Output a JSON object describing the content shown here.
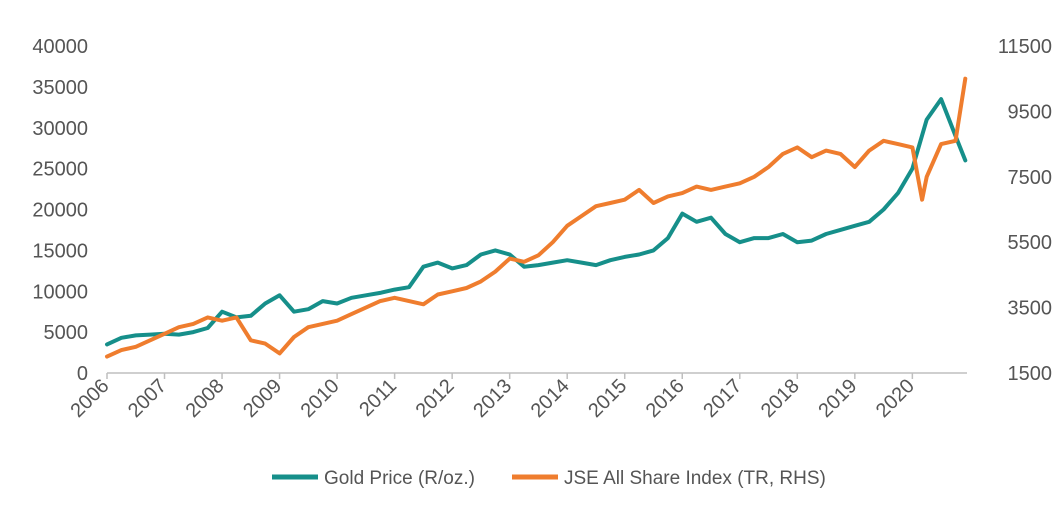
{
  "chart_data": {
    "type": "line",
    "title": "",
    "xlabel": "",
    "ylabel": "",
    "y2label": "",
    "x_ticks": [
      "2006",
      "2007",
      "2008",
      "2009",
      "2010",
      "2011",
      "2012",
      "2013",
      "2014",
      "2015",
      "2016",
      "2017",
      "2018",
      "2019",
      "2020"
    ],
    "xlim": [
      2006,
      2020.95
    ],
    "y_left_ticks": [
      "0",
      "5000",
      "10000",
      "15000",
      "20000",
      "25000",
      "30000",
      "35000",
      "40000"
    ],
    "y_right_ticks": [
      "1500",
      "3500",
      "5500",
      "7500",
      "9500",
      "11500"
    ],
    "ylim_left": [
      0,
      40000
    ],
    "ylim_right": [
      1500,
      11500
    ],
    "grid": false,
    "legend_position": "bottom",
    "series": [
      {
        "name": "Gold Price (R/oz.)",
        "axis": "left",
        "color": "#168f8a",
        "x": [
          2006.0,
          2006.25,
          2006.5,
          2006.75,
          2007.0,
          2007.25,
          2007.5,
          2007.75,
          2008.0,
          2008.25,
          2008.5,
          2008.75,
          2009.0,
          2009.25,
          2009.5,
          2009.75,
          2010.0,
          2010.25,
          2010.5,
          2010.75,
          2011.0,
          2011.25,
          2011.5,
          2011.75,
          2012.0,
          2012.25,
          2012.5,
          2012.75,
          2013.0,
          2013.25,
          2013.5,
          2013.75,
          2014.0,
          2014.25,
          2014.5,
          2014.75,
          2015.0,
          2015.25,
          2015.5,
          2015.75,
          2016.0,
          2016.25,
          2016.5,
          2016.75,
          2017.0,
          2017.25,
          2017.5,
          2017.75,
          2018.0,
          2018.25,
          2018.5,
          2018.75,
          2019.0,
          2019.25,
          2019.5,
          2019.75,
          2020.0,
          2020.25,
          2020.5,
          2020.75,
          2020.92
        ],
        "values": [
          3500,
          4300,
          4600,
          4700,
          4800,
          4700,
          5000,
          5500,
          7500,
          6800,
          7000,
          8500,
          9500,
          7500,
          7800,
          8800,
          8500,
          9200,
          9500,
          9800,
          10200,
          10500,
          13000,
          13500,
          12800,
          13200,
          14500,
          15000,
          14500,
          13000,
          13200,
          13500,
          13800,
          13500,
          13200,
          13800,
          14200,
          14500,
          15000,
          16500,
          19500,
          18500,
          19000,
          17000,
          16000,
          16500,
          16500,
          17000,
          16000,
          16200,
          17000,
          17500,
          18000,
          18500,
          20000,
          22000,
          25000,
          31000,
          33500,
          29000,
          26000
        ]
      },
      {
        "name": "JSE All Share Index (TR, RHS)",
        "axis": "right",
        "color": "#ef7d2e",
        "x": [
          2006.0,
          2006.25,
          2006.5,
          2006.75,
          2007.0,
          2007.25,
          2007.5,
          2007.75,
          2008.0,
          2008.25,
          2008.5,
          2008.75,
          2009.0,
          2009.25,
          2009.5,
          2009.75,
          2010.0,
          2010.25,
          2010.5,
          2010.75,
          2011.0,
          2011.25,
          2011.5,
          2011.75,
          2012.0,
          2012.25,
          2012.5,
          2012.75,
          2013.0,
          2013.25,
          2013.5,
          2013.75,
          2014.0,
          2014.25,
          2014.5,
          2014.75,
          2015.0,
          2015.25,
          2015.5,
          2015.75,
          2016.0,
          2016.25,
          2016.5,
          2016.75,
          2017.0,
          2017.25,
          2017.5,
          2017.75,
          2018.0,
          2018.25,
          2018.5,
          2018.75,
          2019.0,
          2019.25,
          2019.5,
          2019.75,
          2020.0,
          2020.17,
          2020.25,
          2020.5,
          2020.75,
          2020.92
        ],
        "values": [
          2000,
          2200,
          2300,
          2500,
          2700,
          2900,
          3000,
          3200,
          3100,
          3200,
          2500,
          2400,
          2100,
          2600,
          2900,
          3000,
          3100,
          3300,
          3500,
          3700,
          3800,
          3700,
          3600,
          3900,
          4000,
          4100,
          4300,
          4600,
          5000,
          4900,
          5100,
          5500,
          6000,
          6300,
          6600,
          6700,
          6800,
          7100,
          6700,
          6900,
          7000,
          7200,
          7100,
          7200,
          7300,
          7500,
          7800,
          8200,
          8400,
          8100,
          8300,
          8200,
          7800,
          8300,
          8600,
          8500,
          8400,
          6800,
          7500,
          8500,
          8600,
          10500
        ]
      }
    ]
  },
  "legend": {
    "items": [
      {
        "label": "Gold Price (R/oz.)",
        "color": "#168f8a"
      },
      {
        "label": "JSE All Share Index (TR, RHS)",
        "color": "#ef7d2e"
      }
    ]
  }
}
